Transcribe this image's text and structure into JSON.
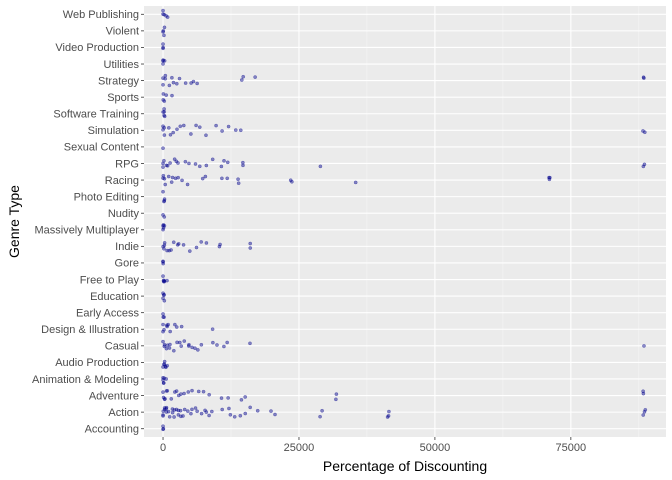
{
  "chart_data": {
    "type": "scatter",
    "title": "",
    "xlabel": "Percentage of Discounting",
    "ylabel": "Genre Type",
    "xlim": [
      -3500,
      92500
    ],
    "x_ticks": [
      0,
      25000,
      50000,
      75000
    ],
    "x_tick_labels": [
      "0",
      "25000",
      "50000",
      "75000"
    ],
    "grid": true,
    "legend": "none",
    "categories": [
      "Accounting",
      "Action",
      "Adventure",
      "Animation & Modeling",
      "Audio Production",
      "Casual",
      "Design & Illustration",
      "Early Access",
      "Education",
      "Free to Play",
      "Gore",
      "Indie",
      "Massively Multiplayer",
      "Nudity",
      "Photo Editing",
      "Racing",
      "RPG",
      "Sexual Content",
      "Simulation",
      "Software Training",
      "Sports",
      "Strategy",
      "Utilities",
      "Video Production",
      "Violent",
      "Web Publishing"
    ],
    "colors": {
      "point": "#00008b",
      "panel": "#ebebeb",
      "grid_major": "#ffffff",
      "grid_minor": "#f5f5f5"
    },
    "series": [
      {
        "category": "Accounting",
        "x": [
          0,
          0,
          100
        ]
      },
      {
        "category": "Action",
        "x": [
          0,
          0,
          100,
          200,
          300,
          500,
          600,
          800,
          1000,
          1200,
          1500,
          1800,
          2000,
          2200,
          2500,
          2800,
          3000,
          3300,
          3500,
          3800,
          4000,
          4500,
          5000,
          5500,
          6000,
          6500,
          7000,
          7500,
          8000,
          8500,
          9000,
          11000,
          12000,
          12500,
          13000,
          14000,
          15000,
          16000,
          17500,
          20000,
          20500,
          29000,
          29500,
          41500,
          41500,
          41500,
          88500,
          88500,
          88500
        ]
      },
      {
        "category": "Adventure",
        "x": [
          0,
          0,
          200,
          500,
          800,
          1000,
          1500,
          2000,
          2500,
          3000,
          3500,
          4000,
          4500,
          5500,
          6500,
          7500,
          8500,
          11000,
          12000,
          14500,
          15000,
          32000,
          32000,
          88500,
          88500
        ]
      },
      {
        "category": "Animation & Modeling",
        "x": [
          0,
          0,
          100,
          200,
          300,
          500
        ]
      },
      {
        "category": "Audio Production",
        "x": [
          0,
          0,
          100,
          200,
          300,
          500,
          700
        ]
      },
      {
        "category": "Casual",
        "x": [
          0,
          0,
          200,
          500,
          800,
          1000,
          1500,
          2000,
          2500,
          3000,
          3500,
          4000,
          4500,
          5000,
          5500,
          6000,
          6500,
          7000,
          9000,
          10000,
          11000,
          12000,
          16000,
          88500
        ]
      },
      {
        "category": "Design & Illustration",
        "x": [
          0,
          0,
          200,
          500,
          800,
          1000,
          1500,
          2000,
          2500,
          3500,
          9000
        ]
      },
      {
        "category": "Early Access",
        "x": [
          0,
          0,
          100
        ]
      },
      {
        "category": "Education",
        "x": [
          0,
          0,
          100,
          200,
          300
        ]
      },
      {
        "category": "Free to Play",
        "x": [
          0,
          0,
          100,
          200,
          300,
          500
        ]
      },
      {
        "category": "Gore",
        "x": [
          0,
          0,
          100
        ]
      },
      {
        "category": "Indie",
        "x": [
          0,
          0,
          200,
          500,
          800,
          1000,
          1500,
          2000,
          2500,
          3000,
          4000,
          5000,
          6000,
          7000,
          8000,
          10500,
          10500,
          16000,
          16000
        ]
      },
      {
        "category": "Massively Multiplayer",
        "x": [
          0,
          0,
          100,
          200,
          300
        ]
      },
      {
        "category": "Nudity",
        "x": [
          0,
          0
        ]
      },
      {
        "category": "Photo Editing",
        "x": [
          0,
          0,
          100,
          200
        ]
      },
      {
        "category": "Racing",
        "x": [
          0,
          0,
          200,
          500,
          1000,
          1500,
          2000,
          2500,
          3000,
          3500,
          4500,
          7500,
          8000,
          11000,
          12000,
          14000,
          14000,
          23500,
          23500,
          35500,
          71000,
          71000,
          71000
        ]
      },
      {
        "category": "RPG",
        "x": [
          0,
          0,
          200,
          500,
          1000,
          1500,
          2000,
          2500,
          3000,
          4000,
          5000,
          6000,
          7000,
          8000,
          9000,
          10500,
          11000,
          12000,
          14500,
          14500,
          29000,
          88500,
          88500
        ]
      },
      {
        "category": "Sexual Content",
        "x": [
          0
        ]
      },
      {
        "category": "Simulation",
        "x": [
          0,
          0,
          200,
          500,
          1000,
          1500,
          2000,
          2500,
          3000,
          4000,
          5000,
          6000,
          7000,
          8000,
          10000,
          11000,
          12000,
          13500,
          14500,
          88500,
          88500
        ]
      },
      {
        "category": "Software Training",
        "x": [
          0,
          0,
          100,
          200,
          300
        ]
      },
      {
        "category": "Sports",
        "x": [
          0,
          0,
          200,
          500,
          1500
        ]
      },
      {
        "category": "Strategy",
        "x": [
          0,
          0,
          200,
          500,
          1000,
          1500,
          2000,
          2500,
          3000,
          4000,
          5000,
          5500,
          6500,
          14500,
          14500,
          17000,
          88500,
          88500
        ]
      },
      {
        "category": "Utilities",
        "x": [
          0,
          0,
          100,
          200
        ]
      },
      {
        "category": "Video Production",
        "x": [
          0,
          0,
          100
        ]
      },
      {
        "category": "Violent",
        "x": [
          0,
          0,
          100,
          200
        ]
      },
      {
        "category": "Web Publishing",
        "x": [
          0,
          0,
          200,
          500,
          1000
        ]
      }
    ]
  }
}
